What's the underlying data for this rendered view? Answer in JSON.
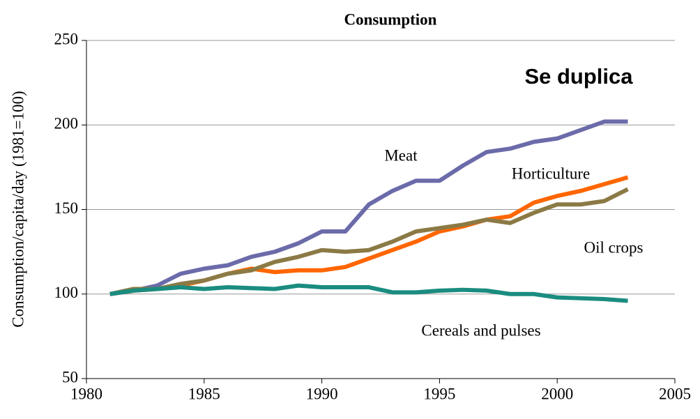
{
  "chart_data": {
    "type": "line",
    "title": "Consumption",
    "y_label": "Consumption/capita/day  (1981=100)",
    "annotation": "Se duplica",
    "x": [
      1981,
      1982,
      1983,
      1984,
      1985,
      1986,
      1987,
      1988,
      1989,
      1990,
      1991,
      1992,
      1993,
      1994,
      1995,
      1996,
      1997,
      1998,
      1999,
      2000,
      2001,
      2002,
      2003
    ],
    "series": [
      {
        "name": "Meat",
        "color": "#6b6baa",
        "values": [
          100,
          102,
          105,
          112,
          115,
          117,
          122,
          125,
          130,
          137,
          137,
          153,
          161,
          167,
          167,
          176,
          184,
          186,
          190,
          192,
          197,
          202,
          202
        ]
      },
      {
        "name": "Horticulture",
        "color": "#ff6600",
        "values": [
          100,
          102,
          103,
          105,
          108,
          112,
          115,
          113,
          114,
          114,
          116,
          121,
          126,
          131,
          137,
          140,
          144,
          146,
          154,
          158,
          161,
          165,
          169
        ]
      },
      {
        "name": "Oil crops",
        "color": "#8b7a45",
        "values": [
          100,
          103,
          103,
          106,
          108,
          112,
          114,
          119,
          122,
          126,
          125,
          126,
          131,
          137,
          139,
          141,
          144,
          142,
          148,
          153,
          153,
          155,
          162
        ]
      },
      {
        "name": "Cereals and pulses",
        "color": "#1a8c80",
        "values": [
          100,
          102,
          103,
          104,
          103,
          104,
          103.5,
          103,
          105,
          104,
          104,
          104,
          101,
          101,
          102,
          102.5,
          102,
          100,
          100,
          98,
          97.5,
          97,
          96
        ]
      }
    ],
    "xlim": [
      1980,
      2005
    ],
    "xticks": [
      1980,
      1985,
      1990,
      1995,
      2000,
      2005
    ],
    "ylim": [
      50,
      250
    ],
    "yticks": [
      50,
      100,
      150,
      200,
      250
    ],
    "grid": true
  }
}
